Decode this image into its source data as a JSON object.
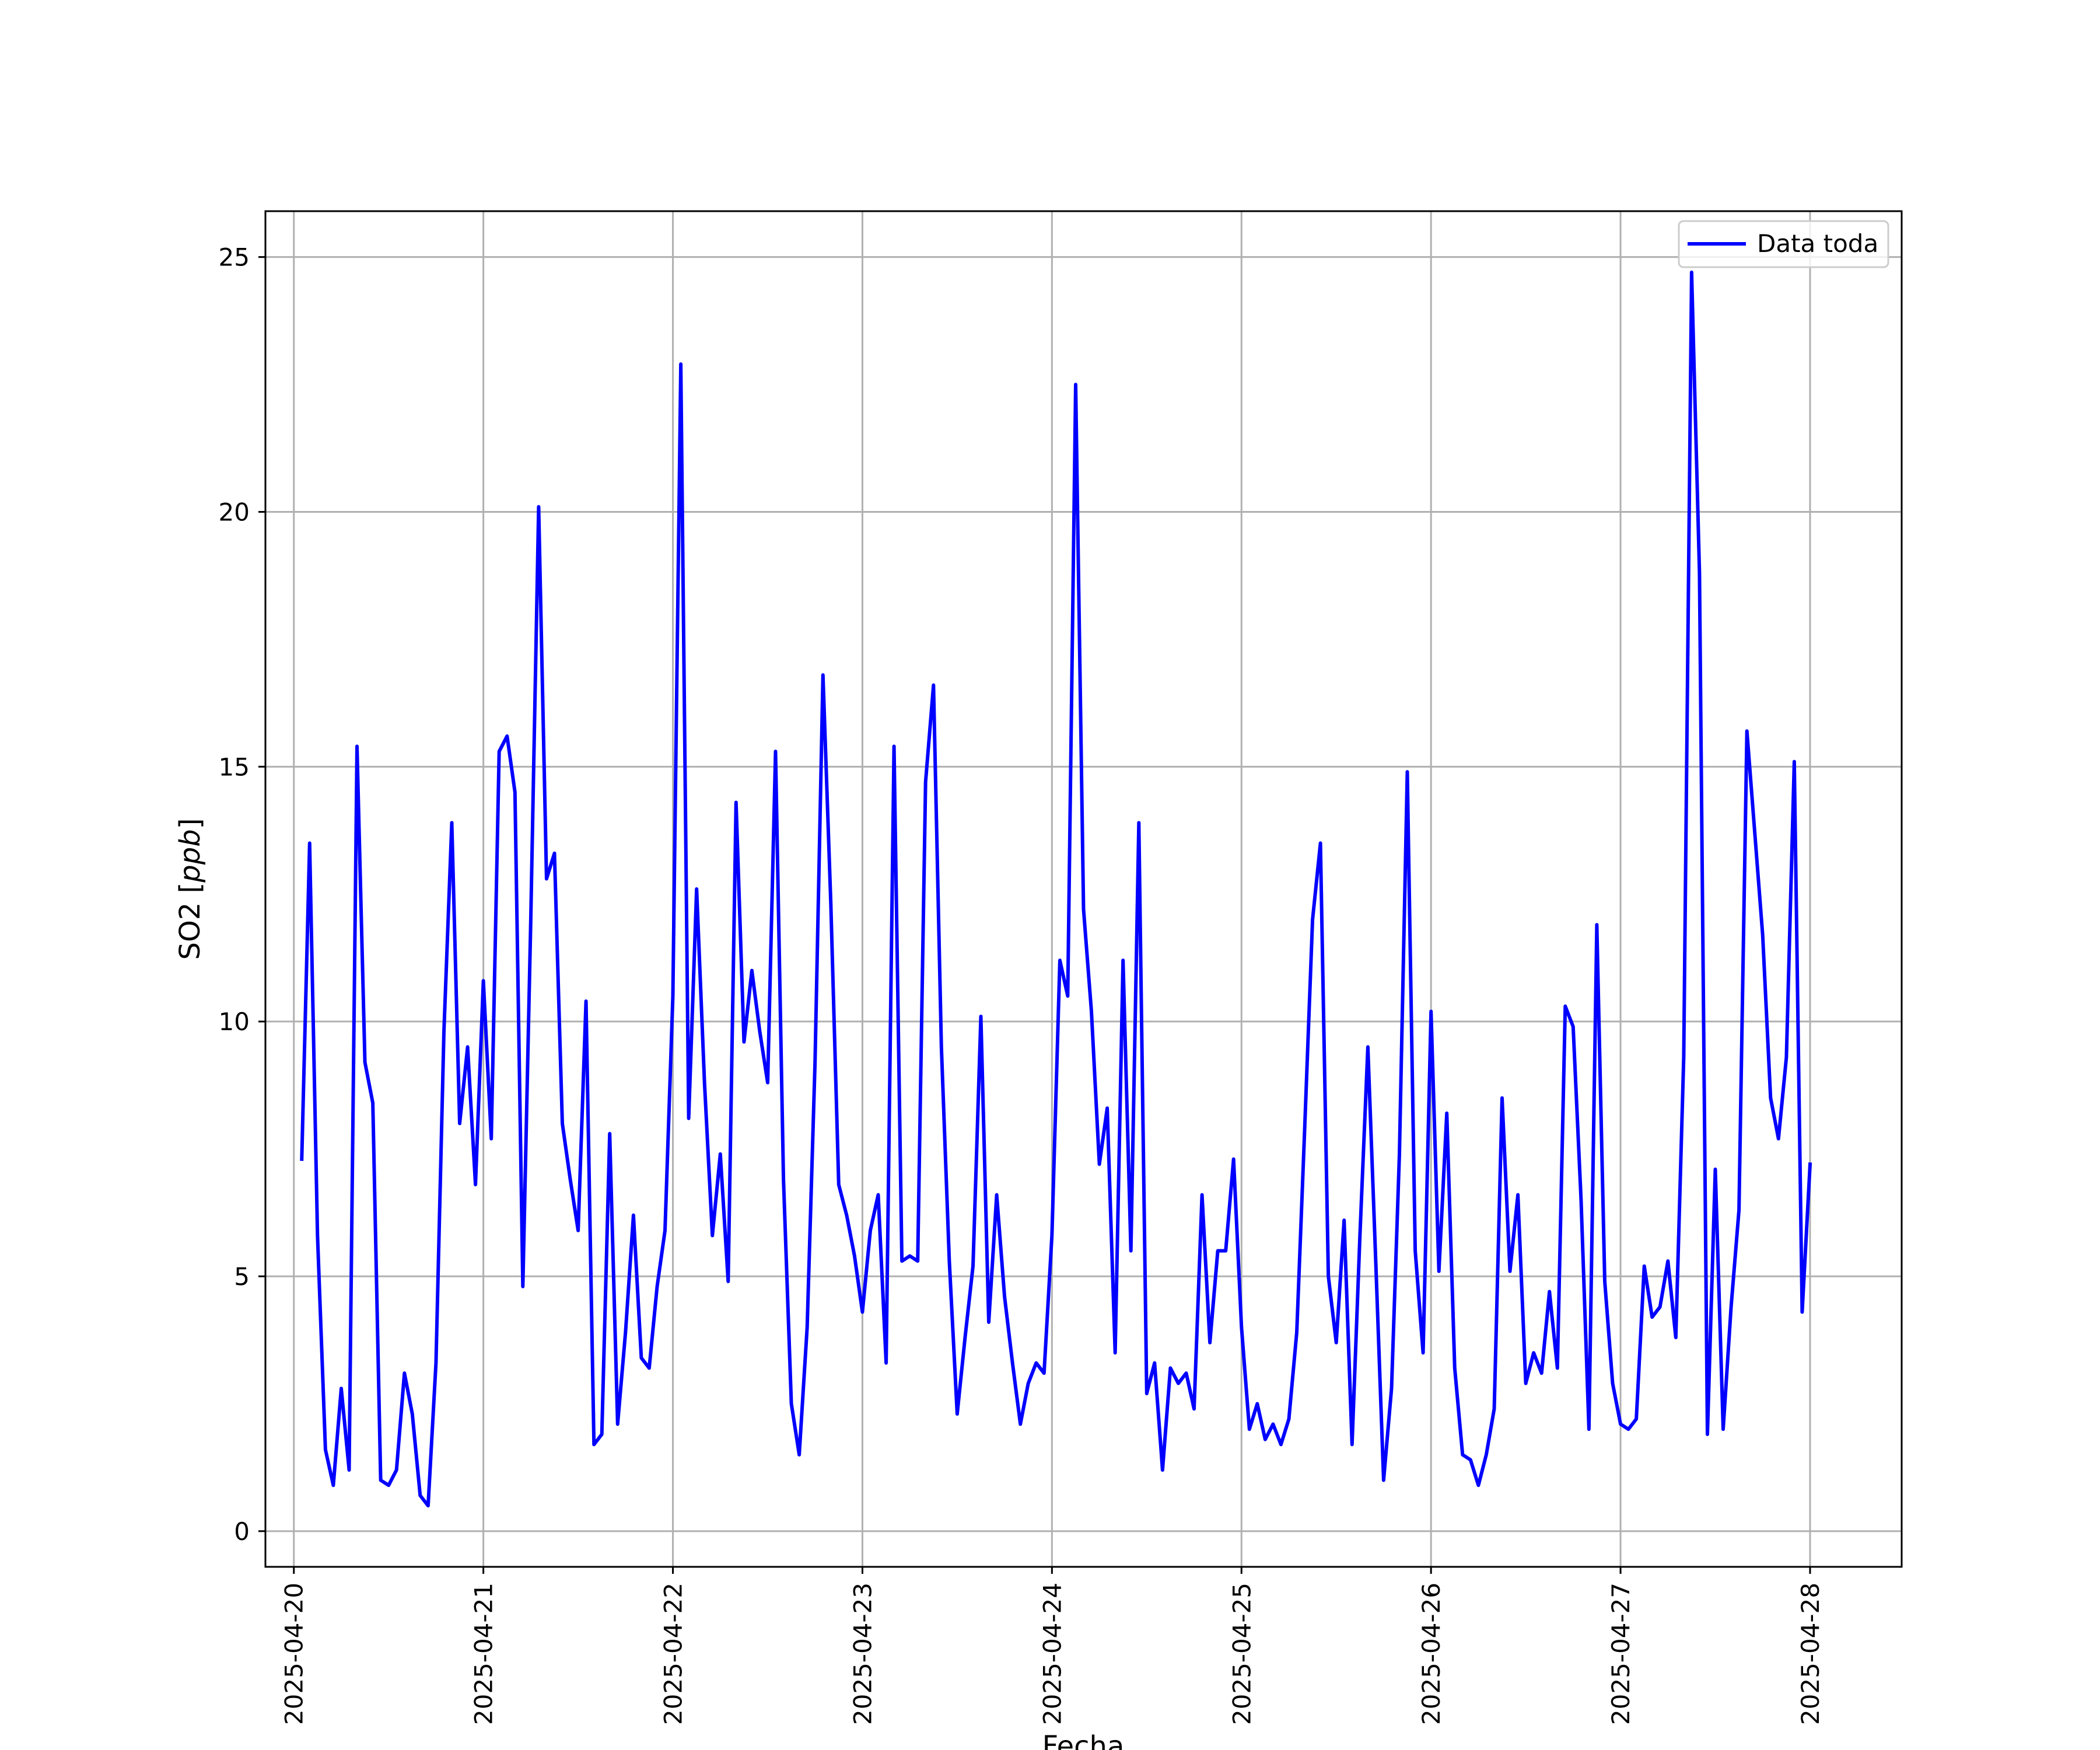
{
  "chart_data": {
    "type": "line",
    "xlabel": "Fecha",
    "ylabel": "SO2 [ppb]",
    "ylabel_parts": {
      "plain": "SO2 [",
      "italic": "ppb",
      "close": "]"
    },
    "x_ticks": [
      "2025-04-20",
      "2025-04-21",
      "2025-04-22",
      "2025-04-23",
      "2025-04-24",
      "2025-04-25",
      "2025-04-26",
      "2025-04-27",
      "2025-04-28"
    ],
    "y_ticks": [
      "0",
      "5",
      "10",
      "15",
      "20",
      "25"
    ],
    "y_tick_values": [
      0,
      5,
      10,
      15,
      20,
      25
    ],
    "xlim": [
      "2025-04-19 20:24",
      "2025-04-28 11:36"
    ],
    "ylim": [
      -0.7,
      25.9
    ],
    "grid": true,
    "legend_position": "top-right",
    "series": [
      {
        "name": "Data toda",
        "color": "#0000ff",
        "x": [
          "2025-04-20 01:00",
          "2025-04-20 02:00",
          "2025-04-20 03:00",
          "2025-04-20 04:00",
          "2025-04-20 05:00",
          "2025-04-20 06:00",
          "2025-04-20 07:00",
          "2025-04-20 08:00",
          "2025-04-20 09:00",
          "2025-04-20 10:00",
          "2025-04-20 11:00",
          "2025-04-20 12:00",
          "2025-04-20 13:00",
          "2025-04-20 14:00",
          "2025-04-20 15:00",
          "2025-04-20 16:00",
          "2025-04-20 17:00",
          "2025-04-20 18:00",
          "2025-04-20 19:00",
          "2025-04-20 20:00",
          "2025-04-20 21:00",
          "2025-04-20 22:00",
          "2025-04-20 23:00",
          "2025-04-21 00:00",
          "2025-04-21 01:00",
          "2025-04-21 02:00",
          "2025-04-21 03:00",
          "2025-04-21 04:00",
          "2025-04-21 05:00",
          "2025-04-21 06:00",
          "2025-04-21 07:00",
          "2025-04-21 08:00",
          "2025-04-21 09:00",
          "2025-04-21 10:00",
          "2025-04-21 11:00",
          "2025-04-21 12:00",
          "2025-04-21 13:00",
          "2025-04-21 14:00",
          "2025-04-21 15:00",
          "2025-04-21 16:00",
          "2025-04-21 17:00",
          "2025-04-21 18:00",
          "2025-04-21 19:00",
          "2025-04-21 20:00",
          "2025-04-21 21:00",
          "2025-04-21 22:00",
          "2025-04-21 23:00",
          "2025-04-22 00:00",
          "2025-04-22 01:00",
          "2025-04-22 02:00",
          "2025-04-22 03:00",
          "2025-04-22 04:00",
          "2025-04-22 05:00",
          "2025-04-22 06:00",
          "2025-04-22 07:00",
          "2025-04-22 08:00",
          "2025-04-22 09:00",
          "2025-04-22 10:00",
          "2025-04-22 11:00",
          "2025-04-22 12:00",
          "2025-04-22 13:00",
          "2025-04-22 14:00",
          "2025-04-22 15:00",
          "2025-04-22 16:00",
          "2025-04-22 17:00",
          "2025-04-22 18:00",
          "2025-04-22 19:00",
          "2025-04-22 20:00",
          "2025-04-22 21:00",
          "2025-04-22 22:00",
          "2025-04-22 23:00",
          "2025-04-23 00:00",
          "2025-04-23 01:00",
          "2025-04-23 02:00",
          "2025-04-23 03:00",
          "2025-04-23 04:00",
          "2025-04-23 05:00",
          "2025-04-23 06:00",
          "2025-04-23 07:00",
          "2025-04-23 08:00",
          "2025-04-23 09:00",
          "2025-04-23 10:00",
          "2025-04-23 11:00",
          "2025-04-23 12:00",
          "2025-04-23 13:00",
          "2025-04-23 14:00",
          "2025-04-23 15:00",
          "2025-04-23 16:00",
          "2025-04-23 17:00",
          "2025-04-23 18:00",
          "2025-04-23 19:00",
          "2025-04-23 20:00",
          "2025-04-23 21:00",
          "2025-04-23 22:00",
          "2025-04-23 23:00",
          "2025-04-24 00:00",
          "2025-04-24 01:00",
          "2025-04-24 02:00",
          "2025-04-24 03:00",
          "2025-04-24 04:00",
          "2025-04-24 05:00",
          "2025-04-24 06:00",
          "2025-04-24 07:00",
          "2025-04-24 08:00",
          "2025-04-24 09:00",
          "2025-04-24 10:00",
          "2025-04-24 11:00",
          "2025-04-24 12:00",
          "2025-04-24 13:00",
          "2025-04-24 14:00",
          "2025-04-24 15:00",
          "2025-04-24 16:00",
          "2025-04-24 17:00",
          "2025-04-24 18:00",
          "2025-04-24 19:00",
          "2025-04-24 20:00",
          "2025-04-24 21:00",
          "2025-04-24 22:00",
          "2025-04-24 23:00",
          "2025-04-25 00:00",
          "2025-04-25 01:00",
          "2025-04-25 02:00",
          "2025-04-25 03:00",
          "2025-04-25 04:00",
          "2025-04-25 05:00",
          "2025-04-25 06:00",
          "2025-04-25 07:00",
          "2025-04-25 08:00",
          "2025-04-25 09:00",
          "2025-04-25 10:00",
          "2025-04-25 11:00",
          "2025-04-25 12:00",
          "2025-04-25 13:00",
          "2025-04-25 14:00",
          "2025-04-25 15:00",
          "2025-04-25 16:00",
          "2025-04-25 17:00",
          "2025-04-25 18:00",
          "2025-04-25 19:00",
          "2025-04-25 20:00",
          "2025-04-25 21:00",
          "2025-04-25 22:00",
          "2025-04-25 23:00",
          "2025-04-26 00:00",
          "2025-04-26 01:00",
          "2025-04-26 02:00",
          "2025-04-26 03:00",
          "2025-04-26 04:00",
          "2025-04-26 05:00",
          "2025-04-26 06:00",
          "2025-04-26 07:00",
          "2025-04-26 08:00",
          "2025-04-26 09:00",
          "2025-04-26 10:00",
          "2025-04-26 11:00",
          "2025-04-26 12:00",
          "2025-04-26 13:00",
          "2025-04-26 14:00",
          "2025-04-26 15:00",
          "2025-04-26 16:00",
          "2025-04-26 17:00",
          "2025-04-26 18:00",
          "2025-04-26 19:00",
          "2025-04-26 20:00",
          "2025-04-26 21:00",
          "2025-04-26 22:00",
          "2025-04-26 23:00",
          "2025-04-27 00:00",
          "2025-04-27 01:00",
          "2025-04-27 02:00",
          "2025-04-27 03:00",
          "2025-04-27 04:00",
          "2025-04-27 05:00",
          "2025-04-27 06:00",
          "2025-04-27 07:00",
          "2025-04-27 08:00",
          "2025-04-27 09:00",
          "2025-04-27 10:00",
          "2025-04-27 11:00",
          "2025-04-27 12:00",
          "2025-04-27 13:00",
          "2025-04-27 14:00",
          "2025-04-27 15:00",
          "2025-04-27 16:00",
          "2025-04-27 17:00",
          "2025-04-27 18:00",
          "2025-04-27 19:00",
          "2025-04-27 20:00",
          "2025-04-27 21:00",
          "2025-04-27 22:00",
          "2025-04-27 23:00",
          "2025-04-28 00:00"
        ],
        "values": [
          7.3,
          13.5,
          5.8,
          1.6,
          0.9,
          2.8,
          1.2,
          15.4,
          9.2,
          8.4,
          1.0,
          0.9,
          1.2,
          3.1,
          2.3,
          0.7,
          0.5,
          3.3,
          9.8,
          13.9,
          8.0,
          9.5,
          6.8,
          10.8,
          7.7,
          15.3,
          15.6,
          14.5,
          4.8,
          12.0,
          20.1,
          12.8,
          13.3,
          8.0,
          6.9,
          5.9,
          10.4,
          1.7,
          1.9,
          7.8,
          2.1,
          3.9,
          6.2,
          3.4,
          3.2,
          4.8,
          5.9,
          10.5,
          22.9,
          8.1,
          12.6,
          8.8,
          5.8,
          7.4,
          4.9,
          14.3,
          9.6,
          11.0,
          9.8,
          8.8,
          15.3,
          6.9,
          2.5,
          1.5,
          4.0,
          9.2,
          16.8,
          12.3,
          6.8,
          6.2,
          5.4,
          4.3,
          5.9,
          6.6,
          3.3,
          15.4,
          5.3,
          5.4,
          5.3,
          14.7,
          16.6,
          9.5,
          5.3,
          2.3,
          3.8,
          5.2,
          10.1,
          4.1,
          6.6,
          4.6,
          3.3,
          2.1,
          2.9,
          3.3,
          3.1,
          5.8,
          11.2,
          10.5,
          22.5,
          12.2,
          10.2,
          7.2,
          8.3,
          3.5,
          11.2,
          5.5,
          13.9,
          2.7,
          3.3,
          1.2,
          3.2,
          2.9,
          3.1,
          2.4,
          6.6,
          3.7,
          5.5,
          5.5,
          7.3,
          4.0,
          2.0,
          2.5,
          1.8,
          2.1,
          1.7,
          2.2,
          3.9,
          7.9,
          12.0,
          13.5,
          5.0,
          3.7,
          6.1,
          1.7,
          5.8,
          9.5,
          5.3,
          1.0,
          2.8,
          7.4,
          14.9,
          5.5,
          3.5,
          10.2,
          5.1,
          8.2,
          3.2,
          1.5,
          1.4,
          0.9,
          1.5,
          2.4,
          8.5,
          5.1,
          6.6,
          2.9,
          3.5,
          3.1,
          4.7,
          3.2,
          10.3,
          9.9,
          6.5,
          2.0,
          11.9,
          4.9,
          2.9,
          2.1,
          2.0,
          2.2,
          5.2,
          4.2,
          4.4,
          5.3,
          3.8,
          9.3,
          24.7,
          18.8,
          1.9,
          7.1,
          2.0,
          4.4,
          6.3,
          15.7,
          13.7,
          11.7,
          8.5,
          7.7,
          9.3,
          15.1,
          4.3,
          7.2
        ]
      }
    ]
  }
}
